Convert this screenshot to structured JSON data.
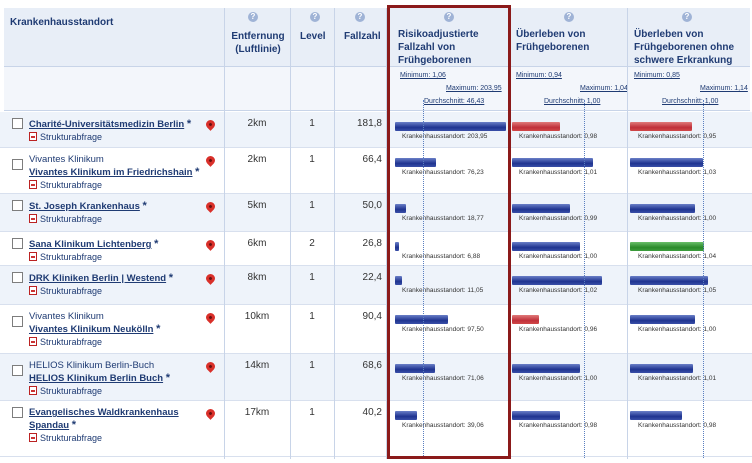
{
  "header": {
    "col_hospital": "Krankenhausstandort",
    "col_distance": "Entfernung (Luftlinie)",
    "col_level": "Level",
    "col_cases": "Fallzahl",
    "col_risk": "Risikoadjustierte Fallzahl von Frühgeborenen",
    "col_survival": "Überleben von Frühgeborenen",
    "col_survival_nodisease": "Überleben von Frühgeborenen ohne schwere Erkrankung",
    "info_glyph": "?"
  },
  "stats": {
    "risk": {
      "min": "Minimum: 1,06",
      "max": "Maximum: 203,95",
      "avg": "Durchschnitt: 46,43"
    },
    "survival": {
      "min": "Minimum: 0,94",
      "max": "Maximum: 1,04",
      "avg": "Durchschnitt: 1,00"
    },
    "survival_nodisease": {
      "min": "Minimum: 0,85",
      "max": "Maximum: 1,14",
      "avg": "Durchschnitt: 1,00"
    }
  },
  "labels": {
    "strukturabfrage": "Strukturabfrage",
    "bar_prefix": "Krankenhausstandort:",
    "star": "*"
  },
  "colors": {
    "blue": "#1f3490",
    "red": "#c0303a",
    "green": "#2a8a2a",
    "frame": "#8b1a1a"
  },
  "rows": [
    {
      "plain": "",
      "name": "Charité-Universitätsmedizin Berlin",
      "distance": "2km",
      "level": "1",
      "cases": "181,8",
      "risk": "203,95",
      "risk_frac": 1.0,
      "surv": "0,98",
      "surv_frac": 0.43,
      "surv_color": "red",
      "surv2": "0,95",
      "surv2_frac": 0.55,
      "surv2_color": "red"
    },
    {
      "plain": "Vivantes Klinikum",
      "name": "Vivantes Klinikum im Friedrichshain",
      "distance": "2km",
      "level": "1",
      "cases": "66,4",
      "risk": "76,23",
      "risk_frac": 0.37,
      "surv": "1,01",
      "surv_frac": 0.72,
      "surv_color": "blue",
      "surv2": "1,03",
      "surv2_frac": 0.65,
      "surv2_color": "blue"
    },
    {
      "plain": "",
      "name": "St. Joseph Krankenhaus",
      "distance": "5km",
      "level": "1",
      "cases": "50,0",
      "risk": "18,77",
      "risk_frac": 0.1,
      "surv": "0,99",
      "surv_frac": 0.52,
      "surv_color": "blue",
      "surv2": "1,00",
      "surv2_frac": 0.58,
      "surv2_color": "blue"
    },
    {
      "plain": "",
      "name": "Sana Klinikum Lichtenberg",
      "distance": "6km",
      "level": "2",
      "cases": "26,8",
      "risk": "6,88",
      "risk_frac": 0.04,
      "surv": "1,00",
      "surv_frac": 0.61,
      "surv_color": "blue",
      "surv2": "1,04",
      "surv2_frac": 0.66,
      "surv2_color": "green"
    },
    {
      "plain": "",
      "name": "DRK Kliniken Berlin | Westend",
      "distance": "8km",
      "level": "1",
      "cases": "22,4",
      "risk": "11,05",
      "risk_frac": 0.06,
      "surv": "1,02",
      "surv_frac": 0.8,
      "surv_color": "blue",
      "surv2": "1,05",
      "surv2_frac": 0.7,
      "surv2_color": "blue"
    },
    {
      "plain": "Vivantes Klinikum",
      "name": "Vivantes Klinikum Neukölln",
      "distance": "10km",
      "level": "1",
      "cases": "90,4",
      "risk": "97,50",
      "risk_frac": 0.48,
      "surv": "0,96",
      "surv_frac": 0.24,
      "surv_color": "red",
      "surv2": "1,00",
      "surv2_frac": 0.58,
      "surv2_color": "blue"
    },
    {
      "plain": "HELIOS Klinikum Berlin-Buch",
      "name": "HELIOS Klinikum Berlin Buch",
      "distance": "14km",
      "level": "1",
      "cases": "68,6",
      "risk": "71,06",
      "risk_frac": 0.36,
      "surv": "1,00",
      "surv_frac": 0.61,
      "surv_color": "blue",
      "surv2": "1,01",
      "surv2_frac": 0.56,
      "surv2_color": "blue"
    },
    {
      "plain": "",
      "name": "Evangelisches Waldkrankenhaus Spandau",
      "distance": "17km",
      "level": "1",
      "cases": "40,2",
      "risk": "39,06",
      "risk_frac": 0.2,
      "surv": "0,98",
      "surv_frac": 0.43,
      "surv_color": "blue",
      "surv2": "0,98",
      "surv2_frac": 0.46,
      "surv2_color": "blue"
    }
  ]
}
